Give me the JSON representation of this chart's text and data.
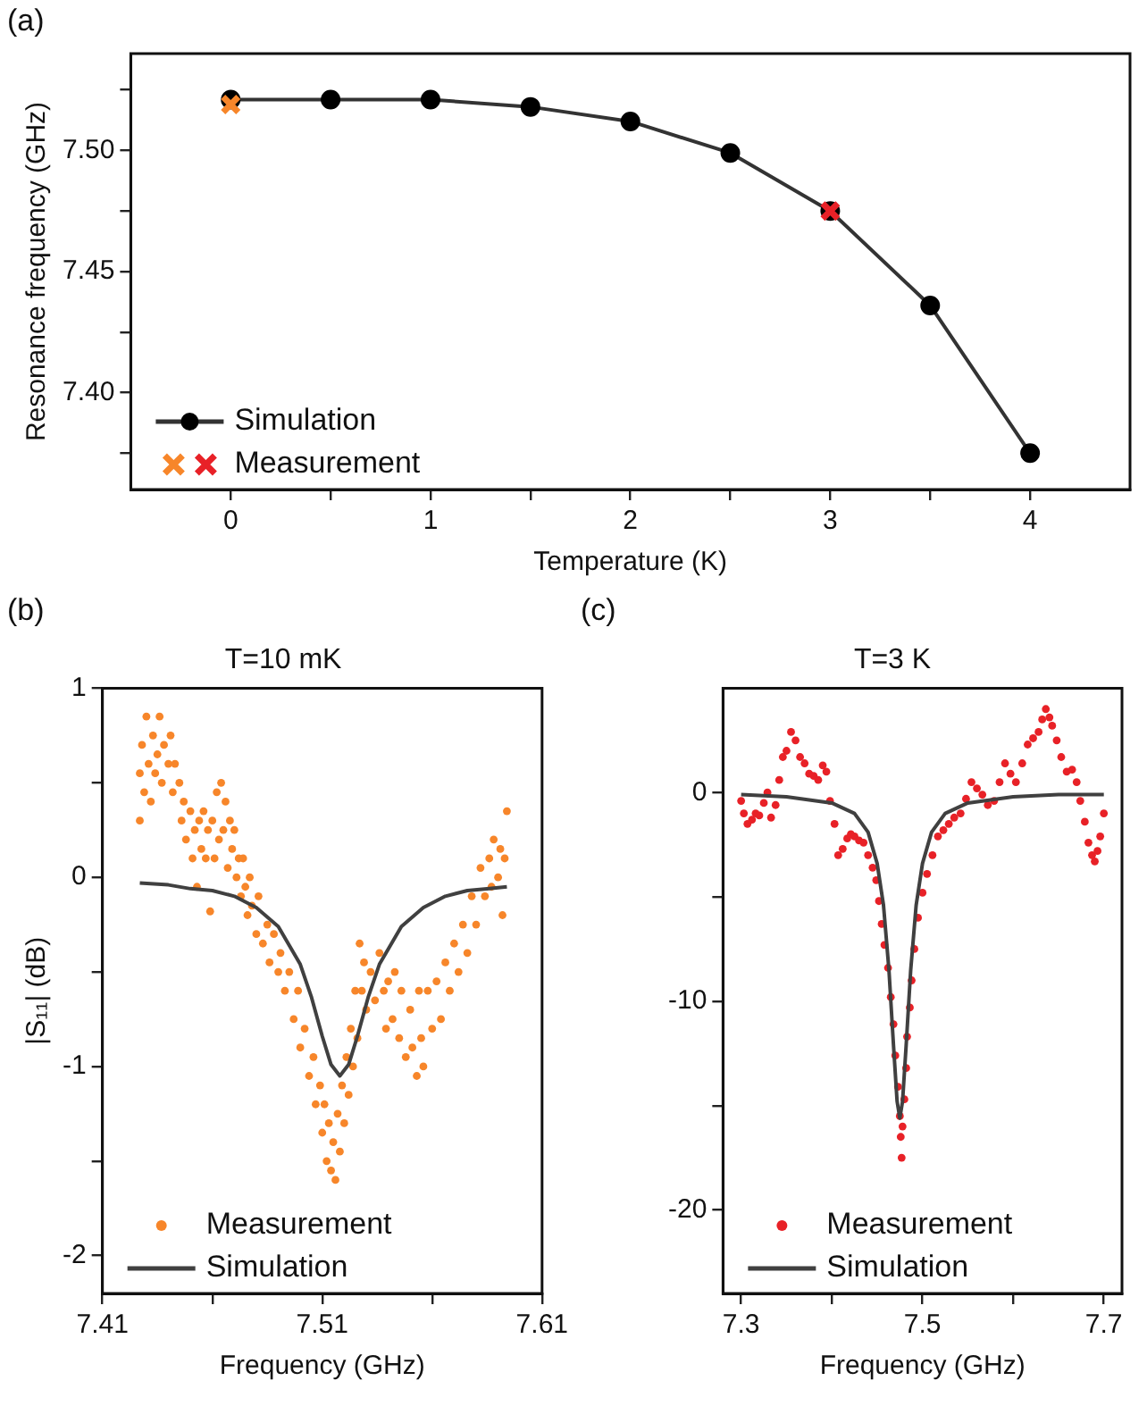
{
  "chart_data": [
    {
      "type": "line",
      "xlabel": "Temperature (K)",
      "ylabel": "Resonance frequency (GHz)",
      "annotations": [
        "(a)"
      ],
      "legend": "bottom left",
      "xlim": [
        -0.5,
        4.5
      ],
      "xticks": [
        0,
        {
          "value": 0.5,
          "label": null
        },
        1,
        {
          "value": 1.5,
          "label": null
        },
        2,
        {
          "value": 2.5,
          "label": null
        },
        3,
        {
          "value": 3.5,
          "label": null
        },
        4
      ],
      "ylim": [
        7.36,
        7.54
      ],
      "yticks": [
        {
          "value": 7.375,
          "label": null
        },
        {
          "value": 7.4,
          "label": "7.40"
        },
        {
          "value": 7.425,
          "label": null
        },
        7.45,
        {
          "value": 7.475,
          "label": null
        },
        {
          "value": 7.5,
          "label": "7.50"
        },
        {
          "value": 7.525,
          "label": null
        }
      ],
      "series": [
        {
          "name": "Simulation",
          "marker": "circle",
          "color": "#333333",
          "x": [
            0,
            0.5,
            1,
            1.5,
            2,
            2.5,
            3,
            3.5,
            4
          ],
          "values": [
            7.521,
            7.521,
            7.521,
            7.518,
            7.512,
            7.499,
            7.475,
            7.436,
            7.375
          ]
        },
        {
          "name": "Measurement",
          "type": "scatter",
          "marker": "cross",
          "colors": [
            "#f7862a",
            "#e82127"
          ],
          "x": [
            0,
            3
          ],
          "values": [
            7.519,
            7.475
          ]
        }
      ]
    },
    {
      "type": "scatter",
      "title": "T=10 mK",
      "xlabel": "Frequency (GHz)",
      "ylabel": "|S₁₁| (dB)",
      "annotations": [
        "(b)"
      ],
      "legend": "bottom left",
      "xlim": [
        7.41,
        7.61
      ],
      "xticks": [
        7.41,
        {
          "value": 7.46,
          "label": null
        },
        7.51,
        {
          "value": 7.56,
          "label": null
        },
        7.61
      ],
      "ylim": [
        -2.2,
        1
      ],
      "yticks": [
        -2,
        {
          "value": -1.5,
          "label": null
        },
        -1,
        {
          "value": -0.5,
          "label": null
        },
        0,
        {
          "value": 0.5,
          "label": null
        },
        1
      ],
      "series": [
        {
          "name": "Measurement",
          "marker": "circle",
          "color": "#f7862a",
          "x": [
            7.427,
            7.427,
            7.428,
            7.429,
            7.43,
            7.431,
            7.432,
            7.433,
            7.434,
            7.435,
            7.436,
            7.437,
            7.438,
            7.44,
            7.441,
            7.442,
            7.443,
            7.445,
            7.446,
            7.447,
            7.448,
            7.45,
            7.451,
            7.452,
            7.453,
            7.454,
            7.455,
            7.456,
            7.457,
            7.458,
            7.459,
            7.46,
            7.461,
            7.462,
            7.463,
            7.464,
            7.465,
            7.466,
            7.467,
            7.468,
            7.469,
            7.47,
            7.471,
            7.472,
            7.473,
            7.474,
            7.475,
            7.476,
            7.477,
            7.478,
            7.48,
            7.481,
            7.483,
            7.485,
            7.486,
            7.488,
            7.49,
            7.491,
            7.493,
            7.495,
            7.497,
            7.499,
            7.5,
            7.502,
            7.504,
            7.506,
            7.507,
            7.509,
            7.51,
            7.511,
            7.512,
            7.513,
            7.514,
            7.515,
            7.516,
            7.517,
            7.518,
            7.519,
            7.52,
            7.521,
            7.522,
            7.523,
            7.524,
            7.525,
            7.526,
            7.527,
            7.528,
            7.529,
            7.53,
            7.532,
            7.534,
            7.536,
            7.538,
            7.539,
            7.54,
            7.542,
            7.543,
            7.545,
            7.546,
            7.548,
            7.55,
            7.551,
            7.553,
            7.554,
            7.555,
            7.556,
            7.558,
            7.56,
            7.562,
            7.564,
            7.566,
            7.568,
            7.57,
            7.572,
            7.574,
            7.576,
            7.578,
            7.58,
            7.582,
            7.584,
            7.586,
            7.587,
            7.588,
            7.59,
            7.591,
            7.592,
            7.593,
            7.594
          ],
          "values": [
            0.3,
            0.55,
            0.7,
            0.45,
            0.85,
            0.6,
            0.4,
            0.75,
            0.55,
            0.65,
            0.85,
            0.5,
            0.7,
            0.6,
            0.75,
            0.45,
            0.6,
            0.5,
            0.3,
            0.4,
            0.2,
            0.35,
            0.1,
            0.25,
            -0.05,
            0.3,
            0.15,
            0.35,
            0.1,
            0.25,
            -0.18,
            0.3,
            0.1,
            0.45,
            0.2,
            0.5,
            0.25,
            0.4,
            0.05,
            0.3,
            0.15,
            0.25,
            0.0,
            0.1,
            -0.1,
            0.1,
            -0.05,
            -0.2,
            0.0,
            -0.15,
            -0.3,
            -0.1,
            -0.35,
            -0.25,
            -0.45,
            -0.3,
            -0.5,
            -0.4,
            -0.6,
            -0.5,
            -0.75,
            -0.6,
            -0.9,
            -0.8,
            -1.05,
            -0.95,
            -1.2,
            -1.1,
            -1.35,
            -1.2,
            -1.5,
            -1.3,
            -1.55,
            -1.4,
            -1.6,
            -1.25,
            -1.45,
            -1.1,
            -1.3,
            -0.95,
            -1.15,
            -0.8,
            -1.0,
            -0.6,
            -0.85,
            -0.35,
            -0.6,
            -0.45,
            -0.7,
            -0.5,
            -0.65,
            -0.4,
            -0.6,
            -0.8,
            -0.55,
            -0.75,
            -0.5,
            -0.85,
            -0.6,
            -0.95,
            -0.7,
            -0.9,
            -1.05,
            -0.6,
            -0.85,
            -1.0,
            -0.6,
            -0.8,
            -0.55,
            -0.75,
            -0.45,
            -0.6,
            -0.35,
            -0.5,
            -0.25,
            -0.4,
            -0.1,
            -0.25,
            0.05,
            -0.1,
            0.1,
            -0.05,
            0.2,
            0.0,
            0.15,
            -0.2,
            0.1,
            0.35
          ]
        },
        {
          "name": "Simulation",
          "type": "line",
          "marker": "none",
          "color": "#404040",
          "x": [
            7.427,
            7.44,
            7.45,
            7.46,
            7.47,
            7.48,
            7.49,
            7.5,
            7.505,
            7.51,
            7.514,
            7.518,
            7.522,
            7.526,
            7.531,
            7.536,
            7.546,
            7.556,
            7.566,
            7.576,
            7.586,
            7.594
          ],
          "values": [
            -0.03,
            -0.04,
            -0.06,
            -0.07,
            -0.1,
            -0.16,
            -0.26,
            -0.46,
            -0.63,
            -0.84,
            -0.99,
            -1.05,
            -0.99,
            -0.84,
            -0.63,
            -0.46,
            -0.26,
            -0.16,
            -0.1,
            -0.07,
            -0.06,
            -0.05
          ]
        }
      ]
    },
    {
      "type": "scatter",
      "title": "T=3 K",
      "xlabel": "Frequency (GHz)",
      "annotations": [
        "(c)"
      ],
      "legend": "bottom left",
      "xlim": [
        7.28,
        7.72
      ],
      "xticks": [
        7.3,
        {
          "value": 7.4,
          "label": null
        },
        7.5,
        {
          "value": 7.6,
          "label": null
        },
        7.7
      ],
      "ylim": [
        -24,
        5
      ],
      "yticks": [
        -20,
        {
          "value": -15,
          "label": null
        },
        -10,
        {
          "value": -5,
          "label": null
        },
        0
      ],
      "series": [
        {
          "name": "Measurement",
          "marker": "circle",
          "color": "#e82127",
          "x": [
            7.3,
            7.303,
            7.307,
            7.312,
            7.316,
            7.32,
            7.325,
            7.329,
            7.333,
            7.338,
            7.342,
            7.346,
            7.35,
            7.355,
            7.36,
            7.365,
            7.37,
            7.375,
            7.38,
            7.385,
            7.39,
            7.394,
            7.398,
            7.403,
            7.407,
            7.412,
            7.417,
            7.421,
            7.425,
            7.43,
            7.435,
            7.44,
            7.445,
            7.449,
            7.452,
            7.455,
            7.458,
            7.462,
            7.465,
            7.468,
            7.47,
            7.473,
            7.475,
            7.476,
            7.477,
            7.478,
            7.48,
            7.482,
            7.483,
            7.486,
            7.488,
            7.491,
            7.495,
            7.5,
            7.505,
            7.511,
            7.517,
            7.523,
            7.529,
            7.535,
            7.542,
            7.548,
            7.554,
            7.56,
            7.566,
            7.572,
            7.579,
            7.585,
            7.591,
            7.597,
            7.603,
            7.61,
            7.616,
            7.622,
            7.628,
            7.632,
            7.636,
            7.64,
            7.643,
            7.648,
            7.653,
            7.659,
            7.665,
            7.67,
            7.674,
            7.679,
            7.683,
            7.687,
            7.69,
            7.693,
            7.696,
            7.7
          ],
          "values": [
            -0.4,
            -1.0,
            -1.5,
            -1.3,
            -1.0,
            -1.1,
            -0.5,
            0.0,
            -1.2,
            -0.6,
            0.6,
            1.7,
            2.0,
            2.9,
            2.5,
            1.7,
            1.4,
            0.9,
            0.8,
            0.6,
            1.3,
            1.0,
            -0.4,
            -1.5,
            -3.0,
            -2.7,
            -2.2,
            -2.0,
            -2.1,
            -2.3,
            -2.4,
            -3.0,
            -3.6,
            -4.2,
            -5.2,
            -6.3,
            -7.3,
            -8.4,
            -9.8,
            -11.1,
            -12.6,
            -14.1,
            -15.5,
            -16.5,
            -17.5,
            -16.0,
            -14.7,
            -13.2,
            -11.7,
            -10.3,
            -9.0,
            -7.5,
            -6.0,
            -4.8,
            -3.9,
            -3.0,
            -2.1,
            -1.8,
            -1.5,
            -1.2,
            -1.0,
            -0.3,
            0.5,
            0.2,
            -0.1,
            -0.6,
            -0.4,
            0.5,
            1.4,
            0.9,
            0.5,
            1.4,
            2.3,
            2.6,
            2.9,
            3.5,
            4.0,
            3.6,
            3.2,
            2.5,
            1.7,
            1.0,
            1.1,
            0.5,
            -0.4,
            -1.4,
            -2.4,
            -3.0,
            -3.3,
            -2.8,
            -2.1,
            -1.0
          ]
        },
        {
          "name": "Simulation",
          "type": "line",
          "marker": "none",
          "color": "#404040",
          "x": [
            7.3,
            7.35,
            7.4,
            7.425,
            7.44,
            7.45,
            7.457,
            7.463,
            7.468,
            7.472,
            7.475,
            7.478,
            7.482,
            7.487,
            7.493,
            7.5,
            7.51,
            7.525,
            7.55,
            7.6,
            7.65,
            7.7
          ],
          "values": [
            -0.1,
            -0.2,
            -0.5,
            -1.0,
            -1.9,
            -3.4,
            -5.4,
            -8.5,
            -12.1,
            -14.8,
            -15.6,
            -14.8,
            -12.1,
            -8.5,
            -5.4,
            -3.4,
            -1.9,
            -1.0,
            -0.5,
            -0.2,
            -0.1,
            -0.1
          ]
        }
      ]
    }
  ]
}
